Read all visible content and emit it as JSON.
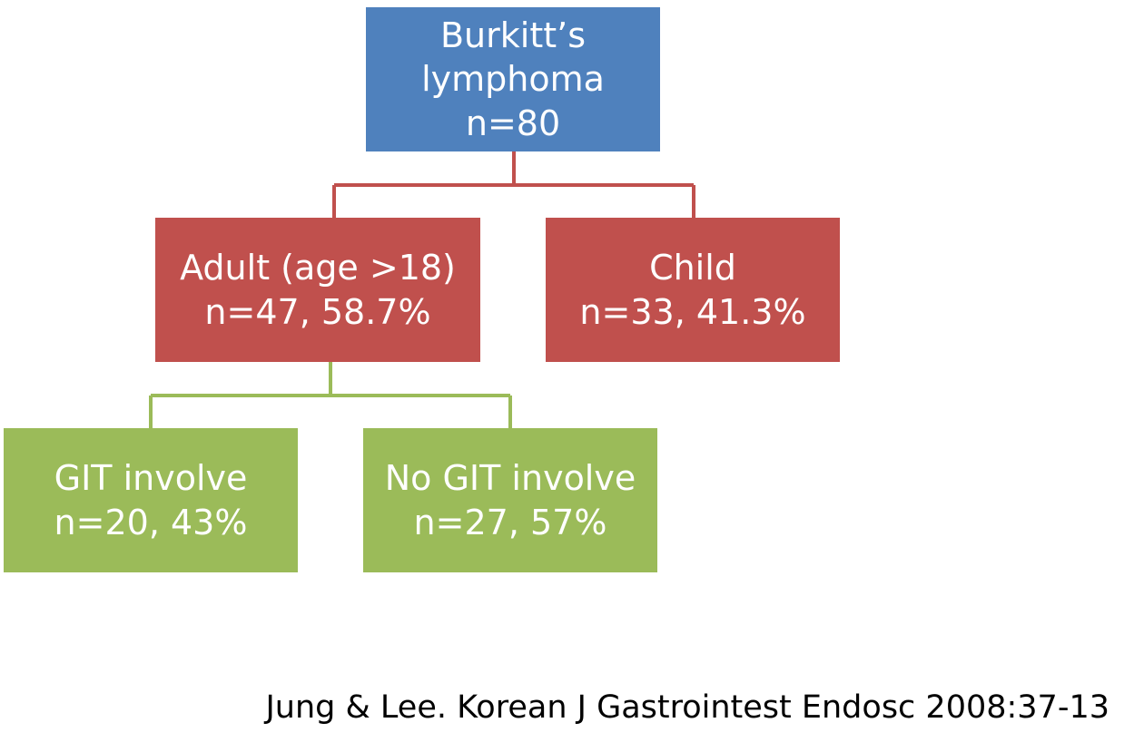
{
  "diagram": {
    "nodes": {
      "root": {
        "lines": [
          "Burkitt’s",
          "lymphoma",
          "n=80"
        ]
      },
      "adult": {
        "lines": [
          "Adult (age >18)",
          "n=47, 58.7%"
        ]
      },
      "child": {
        "lines": [
          "Child",
          "n=33, 41.3%"
        ]
      },
      "git": {
        "lines": [
          "GIT involve",
          "n=20, 43%"
        ]
      },
      "nogit": {
        "lines": [
          "No GIT involve",
          "n=27, 57%"
        ]
      }
    },
    "edges": [
      {
        "from": "root",
        "to": "adult"
      },
      {
        "from": "root",
        "to": "child"
      },
      {
        "from": "adult",
        "to": "git"
      },
      {
        "from": "adult",
        "to": "nogit"
      }
    ],
    "colors": {
      "root": "#4f81bd",
      "level1": "#c0504d",
      "level2": "#9bbb59"
    }
  },
  "citation": "Jung & Lee. Korean J Gastrointest Endosc 2008:37-13"
}
